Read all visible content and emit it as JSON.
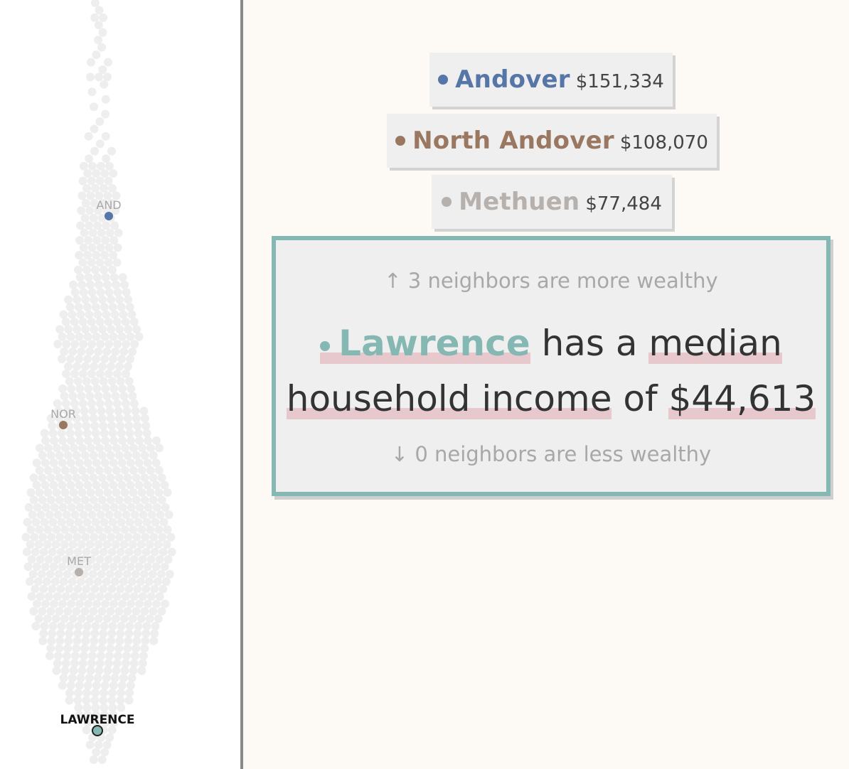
{
  "colors": {
    "andover": "#5576a6",
    "north_andover": "#9a7760",
    "methuen": "#b7b1ad",
    "lawrence": "#85b7b3",
    "swarm_dot": "#eeeeee"
  },
  "swarm": {
    "labels": {
      "and": "AND",
      "nor": "NOR",
      "met": "MET",
      "lawrence": "LAWRENCE"
    }
  },
  "neighbors": [
    {
      "name": "Andover",
      "value": "$151,334"
    },
    {
      "name": "North Andover",
      "value": "$108,070"
    },
    {
      "name": "Methuen",
      "value": "$77,484"
    }
  ],
  "focus": {
    "more_text": "↑ 3 neighbors are more wealthy",
    "name": "Lawrence",
    "phrase1": "has a",
    "median": "median",
    "household_income": "household income",
    "of": "of",
    "value": "$44,613",
    "less_text": "↓ 0 neighbors are less wealthy"
  }
}
